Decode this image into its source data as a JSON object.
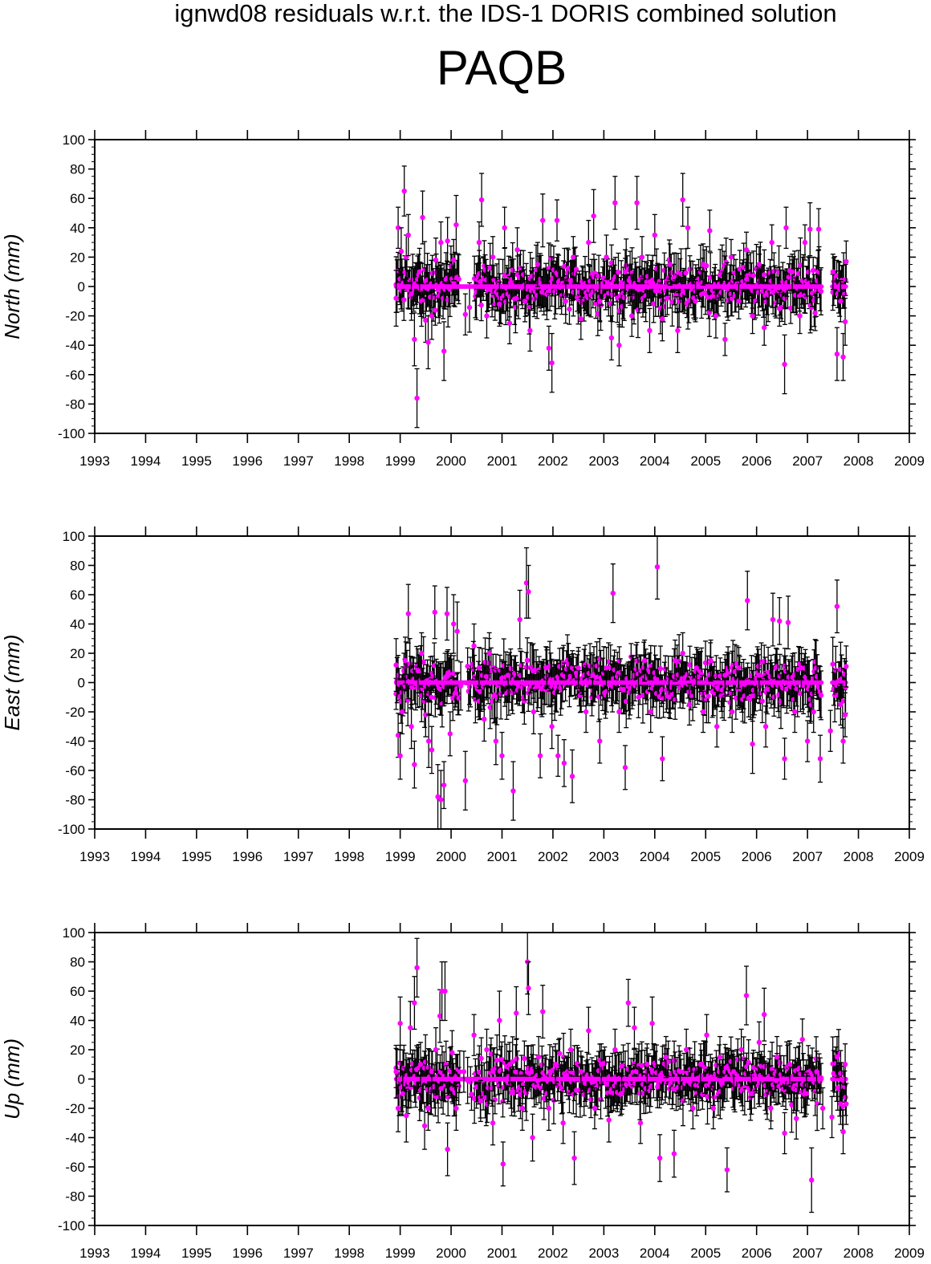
{
  "figure": {
    "subtitle": "ignwd08 residuals w.r.t. the IDS-1 DORIS combined solution",
    "title": "PAQB"
  },
  "colors": {
    "point": "#ff00ff",
    "errorbar": "#000000",
    "frame": "#000000"
  },
  "chart_data": [
    {
      "type": "scatter",
      "ylabel": "North (mm)",
      "xlim": [
        1993,
        2009
      ],
      "ylim": [
        -100,
        100
      ],
      "x_ticks": [
        1993,
        1994,
        1995,
        1996,
        1997,
        1998,
        1999,
        2000,
        2001,
        2002,
        2003,
        2004,
        2005,
        2006,
        2007,
        2008,
        2009
      ],
      "y_ticks": [
        -100,
        -80,
        -60,
        -40,
        -20,
        0,
        20,
        40,
        60,
        80,
        100
      ],
      "grid": false,
      "error_bars": true,
      "points": [
        [
          1998.92,
          -8,
          19
        ],
        [
          1998.96,
          40,
          14
        ],
        [
          1999.02,
          24,
          16
        ],
        [
          1999.08,
          65,
          17
        ],
        [
          1999.12,
          20,
          15
        ],
        [
          1999.16,
          35,
          14
        ],
        [
          1999.22,
          -5,
          18
        ],
        [
          1999.28,
          -36,
          18
        ],
        [
          1999.33,
          -76,
          20
        ],
        [
          1999.38,
          10,
          16
        ],
        [
          1999.44,
          47,
          18
        ],
        [
          1999.5,
          -23,
          15
        ],
        [
          1999.55,
          -38,
          18
        ],
        [
          1999.62,
          -20,
          16
        ],
        [
          1999.7,
          18,
          15
        ],
        [
          1999.8,
          30,
          14
        ],
        [
          1999.86,
          -44,
          20
        ],
        [
          1999.93,
          31,
          16
        ],
        [
          2000.05,
          18,
          14
        ],
        [
          2000.1,
          42,
          20
        ],
        [
          2000.28,
          -19,
          14
        ],
        [
          2000.55,
          30,
          14
        ],
        [
          2000.6,
          59,
          18
        ],
        [
          2000.7,
          -20,
          15
        ],
        [
          2000.82,
          20,
          14
        ],
        [
          2000.95,
          -12,
          15
        ],
        [
          2001.05,
          40,
          14
        ],
        [
          2001.15,
          -25,
          14
        ],
        [
          2001.3,
          25,
          15
        ],
        [
          2001.45,
          -10,
          14
        ],
        [
          2001.55,
          -30,
          14
        ],
        [
          2001.7,
          15,
          15
        ],
        [
          2001.8,
          45,
          18
        ],
        [
          2001.92,
          -42,
          15
        ],
        [
          2001.98,
          -52,
          20
        ],
        [
          2002.08,
          45,
          14
        ],
        [
          2002.25,
          -10,
          15
        ],
        [
          2002.4,
          20,
          14
        ],
        [
          2002.55,
          -22,
          14
        ],
        [
          2002.7,
          30,
          15
        ],
        [
          2002.8,
          48,
          18
        ],
        [
          2002.92,
          -10,
          14
        ],
        [
          2003.05,
          20,
          15
        ],
        [
          2003.15,
          -35,
          15
        ],
        [
          2003.22,
          57,
          18
        ],
        [
          2003.3,
          -40,
          14
        ],
        [
          2003.42,
          10,
          15
        ],
        [
          2003.55,
          -20,
          14
        ],
        [
          2003.65,
          57,
          18
        ],
        [
          2003.75,
          20,
          14
        ],
        [
          2003.9,
          -30,
          15
        ],
        [
          2004.0,
          35,
          14
        ],
        [
          2004.15,
          -22,
          15
        ],
        [
          2004.3,
          15,
          14
        ],
        [
          2004.45,
          -30,
          15
        ],
        [
          2004.55,
          59,
          18
        ],
        [
          2004.65,
          40,
          14
        ],
        [
          2004.8,
          -10,
          14
        ],
        [
          2004.95,
          15,
          14
        ],
        [
          2005.08,
          38,
          14
        ],
        [
          2005.2,
          -20,
          15
        ],
        [
          2005.38,
          -36,
          11
        ],
        [
          2005.5,
          20,
          12
        ],
        [
          2005.65,
          -10,
          12
        ],
        [
          2005.8,
          25,
          12
        ],
        [
          2005.92,
          -20,
          12
        ],
        [
          2006.05,
          15,
          12
        ],
        [
          2006.15,
          -28,
          12
        ],
        [
          2006.3,
          30,
          12
        ],
        [
          2006.45,
          -15,
          12
        ],
        [
          2006.55,
          -53,
          20
        ],
        [
          2006.58,
          40,
          14
        ],
        [
          2006.7,
          10,
          12
        ],
        [
          2006.85,
          -20,
          12
        ],
        [
          2006.95,
          30,
          12
        ],
        [
          2007.05,
          39,
          18
        ],
        [
          2007.15,
          -18,
          12
        ],
        [
          2007.22,
          39,
          14
        ],
        [
          2007.5,
          10,
          12
        ],
        [
          2007.58,
          -46,
          18
        ],
        [
          2007.65,
          -10,
          14
        ],
        [
          2007.7,
          -48,
          16
        ],
        [
          2007.74,
          -24,
          16
        ],
        [
          2007.76,
          17,
          14
        ]
      ]
    },
    {
      "type": "scatter",
      "ylabel": "East (mm)",
      "xlim": [
        1993,
        2009
      ],
      "ylim": [
        -100,
        100
      ],
      "x_ticks": [
        1993,
        1994,
        1995,
        1996,
        1997,
        1998,
        1999,
        2000,
        2001,
        2002,
        2003,
        2004,
        2005,
        2006,
        2007,
        2008,
        2009
      ],
      "y_ticks": [
        -100,
        -80,
        -60,
        -40,
        -20,
        0,
        20,
        40,
        60,
        80,
        100
      ],
      "grid": false,
      "error_bars": true,
      "points": [
        [
          1998.92,
          12,
          18
        ],
        [
          1998.96,
          -36,
          15
        ],
        [
          1999.0,
          -50,
          16
        ],
        [
          1999.04,
          -20,
          15
        ],
        [
          1999.1,
          15,
          16
        ],
        [
          1999.16,
          47,
          20
        ],
        [
          1999.22,
          -30,
          15
        ],
        [
          1999.28,
          -56,
          16
        ],
        [
          1999.35,
          8,
          15
        ],
        [
          1999.42,
          20,
          14
        ],
        [
          1999.5,
          -22,
          15
        ],
        [
          1999.56,
          -40,
          18
        ],
        [
          1999.62,
          -46,
          16
        ],
        [
          1999.68,
          48,
          18
        ],
        [
          1999.74,
          -78,
          22
        ],
        [
          1999.8,
          -80,
          20
        ],
        [
          1999.86,
          -70,
          16
        ],
        [
          1999.92,
          47,
          18
        ],
        [
          1999.98,
          -35,
          15
        ],
        [
          2000.05,
          40,
          20
        ],
        [
          2000.12,
          35,
          20
        ],
        [
          2000.28,
          -67,
          20
        ],
        [
          2000.45,
          25,
          15
        ],
        [
          2000.55,
          10,
          14
        ],
        [
          2000.65,
          -25,
          15
        ],
        [
          2000.75,
          20,
          14
        ],
        [
          2000.88,
          -40,
          16
        ],
        [
          2001.0,
          -50,
          16
        ],
        [
          2001.12,
          5,
          14
        ],
        [
          2001.22,
          -74,
          20
        ],
        [
          2001.35,
          43,
          20
        ],
        [
          2001.48,
          68,
          24
        ],
        [
          2001.52,
          62,
          18
        ],
        [
          2001.62,
          -20,
          15
        ],
        [
          2001.75,
          -50,
          15
        ],
        [
          2001.88,
          10,
          14
        ],
        [
          2001.98,
          -30,
          15
        ],
        [
          2002.1,
          -50,
          14
        ],
        [
          2002.22,
          -55,
          16
        ],
        [
          2002.38,
          -64,
          18
        ],
        [
          2002.5,
          10,
          14
        ],
        [
          2002.65,
          -20,
          14
        ],
        [
          2002.78,
          5,
          14
        ],
        [
          2002.92,
          -40,
          15
        ],
        [
          2003.05,
          10,
          14
        ],
        [
          2003.18,
          61,
          20
        ],
        [
          2003.3,
          -20,
          14
        ],
        [
          2003.42,
          -58,
          15
        ],
        [
          2003.55,
          0,
          14
        ],
        [
          2003.68,
          -10,
          14
        ],
        [
          2003.8,
          15,
          14
        ],
        [
          2003.92,
          -20,
          14
        ],
        [
          2004.05,
          79,
          22
        ],
        [
          2004.15,
          -52,
          15
        ],
        [
          2004.28,
          -10,
          14
        ],
        [
          2004.4,
          15,
          14
        ],
        [
          2004.55,
          20,
          14
        ],
        [
          2004.68,
          -15,
          14
        ],
        [
          2004.82,
          10,
          14
        ],
        [
          2004.95,
          -20,
          14
        ],
        [
          2005.1,
          15,
          14
        ],
        [
          2005.22,
          -30,
          14
        ],
        [
          2005.38,
          5,
          14
        ],
        [
          2005.52,
          -20,
          14
        ],
        [
          2005.65,
          10,
          14
        ],
        [
          2005.82,
          56,
          20
        ],
        [
          2005.92,
          -42,
          20
        ],
        [
          2006.05,
          5,
          14
        ],
        [
          2006.18,
          -30,
          14
        ],
        [
          2006.32,
          43,
          18
        ],
        [
          2006.45,
          42,
          16
        ],
        [
          2006.55,
          -52,
          14
        ],
        [
          2006.62,
          41,
          18
        ],
        [
          2006.75,
          -20,
          14
        ],
        [
          2006.88,
          10,
          14
        ],
        [
          2007.0,
          -40,
          14
        ],
        [
          2007.12,
          -20,
          14
        ],
        [
          2007.25,
          -52,
          16
        ],
        [
          2007.45,
          -33,
          14
        ],
        [
          2007.58,
          52,
          18
        ],
        [
          2007.65,
          -15,
          14
        ],
        [
          2007.7,
          -40,
          15
        ],
        [
          2007.74,
          -22,
          15
        ],
        [
          2007.76,
          11,
          14
        ]
      ]
    },
    {
      "type": "scatter",
      "ylabel": "Up (mm)",
      "xlim": [
        1993,
        2009
      ],
      "ylim": [
        -100,
        100
      ],
      "x_ticks": [
        1993,
        1994,
        1995,
        1996,
        1997,
        1998,
        1999,
        2000,
        2001,
        2002,
        2003,
        2004,
        2005,
        2006,
        2007,
        2008,
        2009
      ],
      "y_ticks": [
        -100,
        -80,
        -60,
        -40,
        -20,
        0,
        20,
        40,
        60,
        80,
        100
      ],
      "grid": false,
      "error_bars": true,
      "points": [
        [
          1998.92,
          5,
          18
        ],
        [
          1998.96,
          -20,
          16
        ],
        [
          1999.0,
          38,
          18
        ],
        [
          1999.05,
          -10,
          15
        ],
        [
          1999.12,
          -25,
          18
        ],
        [
          1999.2,
          35,
          18
        ],
        [
          1999.28,
          52,
          18
        ],
        [
          1999.33,
          76,
          20
        ],
        [
          1999.4,
          10,
          15
        ],
        [
          1999.48,
          -32,
          16
        ],
        [
          1999.55,
          -20,
          15
        ],
        [
          1999.62,
          5,
          14
        ],
        [
          1999.7,
          20,
          15
        ],
        [
          1999.78,
          43,
          18
        ],
        [
          1999.82,
          60,
          20
        ],
        [
          1999.88,
          60,
          20
        ],
        [
          1999.93,
          -48,
          18
        ],
        [
          2000.02,
          18,
          15
        ],
        [
          2000.1,
          -20,
          15
        ],
        [
          2000.25,
          5,
          14
        ],
        [
          2000.45,
          30,
          14
        ],
        [
          2000.58,
          -15,
          14
        ],
        [
          2000.7,
          20,
          14
        ],
        [
          2000.82,
          -30,
          15
        ],
        [
          2000.95,
          40,
          20
        ],
        [
          2001.02,
          -58,
          15
        ],
        [
          2001.15,
          10,
          15
        ],
        [
          2001.28,
          45,
          18
        ],
        [
          2001.4,
          -20,
          15
        ],
        [
          2001.5,
          80,
          22
        ],
        [
          2001.52,
          62,
          18
        ],
        [
          2001.6,
          -40,
          16
        ],
        [
          2001.72,
          15,
          14
        ],
        [
          2001.8,
          46,
          18
        ],
        [
          2001.92,
          -20,
          15
        ],
        [
          2002.05,
          10,
          14
        ],
        [
          2002.2,
          -30,
          14
        ],
        [
          2002.35,
          20,
          14
        ],
        [
          2002.42,
          -54,
          18
        ],
        [
          2002.55,
          5,
          14
        ],
        [
          2002.7,
          33,
          16
        ],
        [
          2002.82,
          -20,
          14
        ],
        [
          2002.95,
          10,
          14
        ],
        [
          2003.1,
          -28,
          15
        ],
        [
          2003.22,
          20,
          14
        ],
        [
          2003.35,
          -10,
          14
        ],
        [
          2003.48,
          52,
          16
        ],
        [
          2003.6,
          35,
          14
        ],
        [
          2003.72,
          -30,
          14
        ],
        [
          2003.85,
          10,
          14
        ],
        [
          2003.95,
          38,
          18
        ],
        [
          2004.1,
          -54,
          16
        ],
        [
          2004.22,
          15,
          14
        ],
        [
          2004.38,
          -51,
          16
        ],
        [
          2004.5,
          5,
          14
        ],
        [
          2004.62,
          20,
          14
        ],
        [
          2004.75,
          -20,
          14
        ],
        [
          2004.9,
          10,
          14
        ],
        [
          2005.02,
          30,
          14
        ],
        [
          2005.15,
          -20,
          14
        ],
        [
          2005.28,
          15,
          14
        ],
        [
          2005.42,
          -62,
          15
        ],
        [
          2005.55,
          5,
          14
        ],
        [
          2005.7,
          20,
          14
        ],
        [
          2005.8,
          57,
          20
        ],
        [
          2005.9,
          -10,
          14
        ],
        [
          2006.05,
          25,
          14
        ],
        [
          2006.15,
          44,
          18
        ],
        [
          2006.28,
          -20,
          14
        ],
        [
          2006.4,
          15,
          14
        ],
        [
          2006.55,
          -37,
          14
        ],
        [
          2006.65,
          10,
          14
        ],
        [
          2006.78,
          -27,
          14
        ],
        [
          2006.9,
          27,
          14
        ],
        [
          2006.98,
          -10,
          14
        ],
        [
          2007.08,
          -69,
          22
        ],
        [
          2007.18,
          5,
          14
        ],
        [
          2007.3,
          -20,
          14
        ],
        [
          2007.48,
          -26,
          14
        ],
        [
          2007.58,
          15,
          14
        ],
        [
          2007.65,
          -17,
          14
        ],
        [
          2007.7,
          -36,
          15
        ],
        [
          2007.74,
          10,
          14
        ],
        [
          2007.76,
          -17,
          14
        ]
      ]
    }
  ]
}
